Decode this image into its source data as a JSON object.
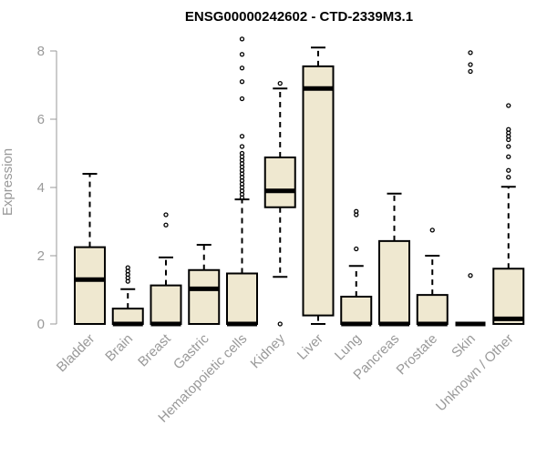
{
  "chart_data": {
    "type": "boxplot",
    "title": "ENSG00000242602 - CTD-2339M3.1",
    "xlabel": "",
    "ylabel": "Expression",
    "ylim": [
      0,
      8.3
    ],
    "yticks": [
      0,
      2,
      4,
      6,
      8
    ],
    "box_fill": "#efe8d0",
    "categories": [
      "Bladder",
      "Brain",
      "Breast",
      "Gastric",
      "Hematopoietic cells",
      "Kidney",
      "Liver",
      "Lung",
      "Pancreas",
      "Prostate",
      "Skin",
      "Unknown / Other"
    ],
    "boxes": [
      {
        "name": "Bladder",
        "whisker_low": 0,
        "q1": 0,
        "median": 1.3,
        "q3": 2.25,
        "whisker_high": 4.4,
        "outliers": []
      },
      {
        "name": "Brain",
        "whisker_low": 0,
        "q1": 0,
        "median": 0,
        "q3": 0.45,
        "whisker_high": 1.02,
        "outliers": [
          1.25,
          1.35,
          1.45,
          1.55,
          1.65
        ]
      },
      {
        "name": "Breast",
        "whisker_low": 0,
        "q1": 0,
        "median": 0,
        "q3": 1.13,
        "whisker_high": 1.95,
        "outliers": [
          2.9,
          3.2
        ]
      },
      {
        "name": "Gastric",
        "whisker_low": 0,
        "q1": 0,
        "median": 1.03,
        "q3": 1.58,
        "whisker_high": 2.32,
        "outliers": []
      },
      {
        "name": "Hematopoietic cells",
        "whisker_low": 0,
        "q1": 0,
        "median": 0,
        "q3": 1.48,
        "whisker_high": 3.65,
        "outliers": [
          3.7,
          3.8,
          3.9,
          4.0,
          4.1,
          4.2,
          4.3,
          4.4,
          4.5,
          4.6,
          4.7,
          4.8,
          4.9,
          5.0,
          5.2,
          5.5,
          6.6,
          7.1,
          7.5,
          7.9,
          8.35
        ]
      },
      {
        "name": "Kidney",
        "whisker_low": 1.38,
        "q1": 3.42,
        "median": 3.9,
        "q3": 4.88,
        "whisker_high": 6.9,
        "outliers": [
          0,
          7.05
        ]
      },
      {
        "name": "Liver",
        "whisker_low": 0,
        "q1": 0.25,
        "median": 6.9,
        "q3": 7.55,
        "whisker_high": 8.1,
        "outliers": []
      },
      {
        "name": "Lung",
        "whisker_low": 0,
        "q1": 0,
        "median": 0,
        "q3": 0.8,
        "whisker_high": 1.7,
        "outliers": [
          2.2,
          3.2,
          3.3
        ]
      },
      {
        "name": "Pancreas",
        "whisker_low": 0,
        "q1": 0,
        "median": 0,
        "q3": 2.43,
        "whisker_high": 3.82,
        "outliers": []
      },
      {
        "name": "Prostate",
        "whisker_low": 0,
        "q1": 0,
        "median": 0,
        "q3": 0.85,
        "whisker_high": 2.0,
        "outliers": [
          2.75
        ]
      },
      {
        "name": "Skin",
        "whisker_low": 0,
        "q1": 0,
        "median": 0,
        "q3": 0,
        "whisker_high": 0,
        "outliers": [
          1.42,
          7.4,
          7.6,
          7.95
        ]
      },
      {
        "name": "Unknown / Other",
        "whisker_low": 0,
        "q1": 0,
        "median": 0.15,
        "q3": 1.62,
        "whisker_high": 4.02,
        "outliers": [
          4.3,
          4.5,
          4.9,
          5.2,
          5.4,
          5.5,
          5.6,
          5.7,
          6.4
        ]
      }
    ]
  }
}
